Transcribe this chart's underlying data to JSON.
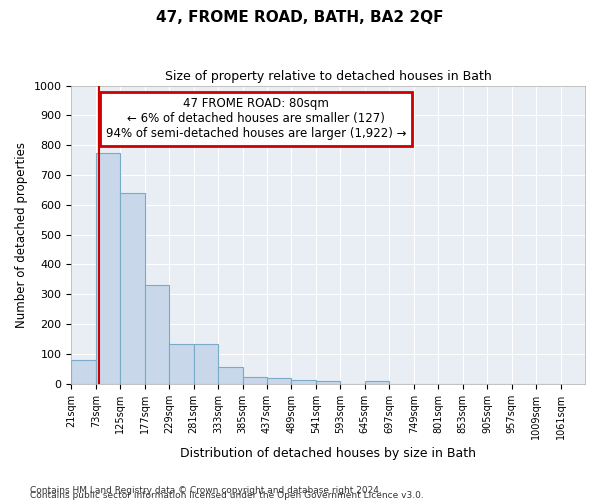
{
  "title": "47, FROME ROAD, BATH, BA2 2QF",
  "subtitle": "Size of property relative to detached houses in Bath",
  "xlabel": "Distribution of detached houses by size in Bath",
  "ylabel": "Number of detached properties",
  "bar_values": [
    80,
    775,
    640,
    330,
    133,
    133,
    55,
    22,
    18,
    12,
    8,
    0,
    10,
    0,
    0,
    0,
    0,
    0,
    0,
    0
  ],
  "bar_color": "#c8d8ea",
  "bar_edge_color": "#7aaac8",
  "bin_labels": [
    "21sqm",
    "73sqm",
    "125sqm",
    "177sqm",
    "229sqm",
    "281sqm",
    "333sqm",
    "385sqm",
    "437sqm",
    "489sqm",
    "541sqm",
    "593sqm",
    "645sqm",
    "697sqm",
    "749sqm",
    "801sqm",
    "853sqm",
    "905sqm",
    "957sqm",
    "1009sqm",
    "1061sqm"
  ],
  "bin_left_edges": [
    21,
    73,
    125,
    177,
    229,
    281,
    333,
    385,
    437,
    489,
    541,
    593,
    645,
    697,
    749,
    801,
    853,
    905,
    957,
    1009,
    1061
  ],
  "bin_width": 52,
  "vline_x": 80,
  "vline_color": "#cc0000",
  "ylim": [
    0,
    1000
  ],
  "yticks": [
    0,
    100,
    200,
    300,
    400,
    500,
    600,
    700,
    800,
    900,
    1000
  ],
  "annotation_title": "47 FROME ROAD: 80sqm",
  "annotation_line1": "← 6% of detached houses are smaller (127)",
  "annotation_line2": "94% of semi-detached houses are larger (1,922) →",
  "annotation_box_color": "#cc0000",
  "footer_line1": "Contains HM Land Registry data © Crown copyright and database right 2024.",
  "footer_line2": "Contains public sector information licensed under the Open Government Licence v3.0.",
  "plot_bg_color": "#e8eef4",
  "fig_bg_color": "#ffffff",
  "grid_color": "#ffffff"
}
